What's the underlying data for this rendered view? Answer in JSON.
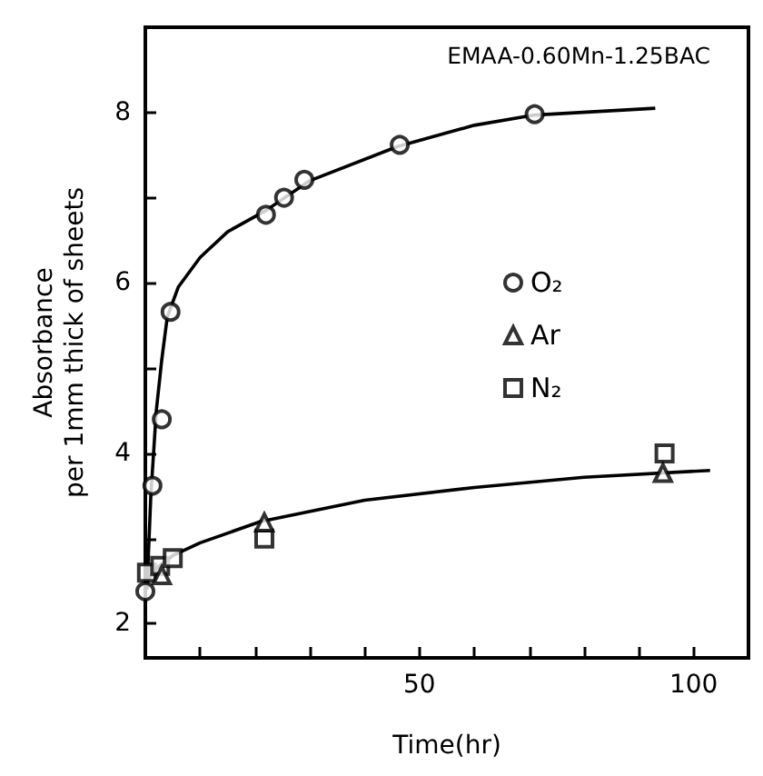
{
  "chart_data": {
    "type": "scatter",
    "title": "EMAA-0.60Mn-1.25BAC",
    "xlabel": "Time(hr)",
    "ylabel": "Absorbance\nper 1mm thick of sheets",
    "xlim": [
      0,
      110
    ],
    "ylim": [
      1.6,
      9.0
    ],
    "xticks": [
      {
        "value": 10,
        "label": null
      },
      {
        "value": 20,
        "label": null
      },
      {
        "value": 30,
        "label": null
      },
      {
        "value": 40,
        "label": null
      },
      50,
      {
        "value": 60,
        "label": null
      },
      {
        "value": 70,
        "label": null
      },
      {
        "value": 80,
        "label": null
      },
      {
        "value": 90,
        "label": null
      },
      100
    ],
    "yticks": [
      2,
      {
        "value": 3,
        "label": null
      },
      4,
      {
        "value": 5,
        "label": null
      },
      6,
      {
        "value": 7,
        "label": null
      },
      8
    ],
    "grid": false,
    "legend": "right",
    "series": [
      {
        "name": "O₂",
        "color": "#000000",
        "marker": "circle",
        "x": [
          0,
          1.3,
          3,
          4.6,
          22,
          25.3,
          29,
          46.4,
          71
        ],
        "values": [
          2.38,
          3.62,
          4.4,
          5.66,
          6.8,
          7.0,
          7.21,
          7.62,
          7.98
        ]
      },
      {
        "name": "Ar",
        "color": "#000000",
        "marker": "triangle",
        "x": [
          3,
          21.7,
          94.4
        ],
        "values": [
          2.57,
          3.19,
          3.77
        ]
      },
      {
        "name": "N₂",
        "color": "#000000",
        "marker": "square",
        "x": [
          0.3,
          2.7,
          5,
          21.7,
          94.7
        ],
        "values": [
          2.6,
          2.68,
          2.77,
          3.0,
          4.0
        ]
      },
      {
        "type": "line",
        "color": "#000000",
        "marker": "none",
        "line_style": "solid",
        "x": [
          0.3,
          1,
          2,
          3,
          4,
          6,
          10,
          15,
          22,
          30,
          46,
          60,
          71,
          93
        ],
        "values": [
          2.4,
          3.5,
          4.5,
          5.1,
          5.6,
          5.95,
          6.3,
          6.6,
          6.85,
          7.2,
          7.6,
          7.85,
          7.97,
          8.05
        ]
      },
      {
        "type": "line",
        "color": "#000000",
        "marker": "none",
        "line_style": "solid",
        "x": [
          0.3,
          2,
          5,
          10,
          21,
          40,
          60,
          80,
          103
        ],
        "values": [
          2.5,
          2.65,
          2.8,
          2.95,
          3.2,
          3.45,
          3.6,
          3.72,
          3.8
        ]
      }
    ]
  }
}
